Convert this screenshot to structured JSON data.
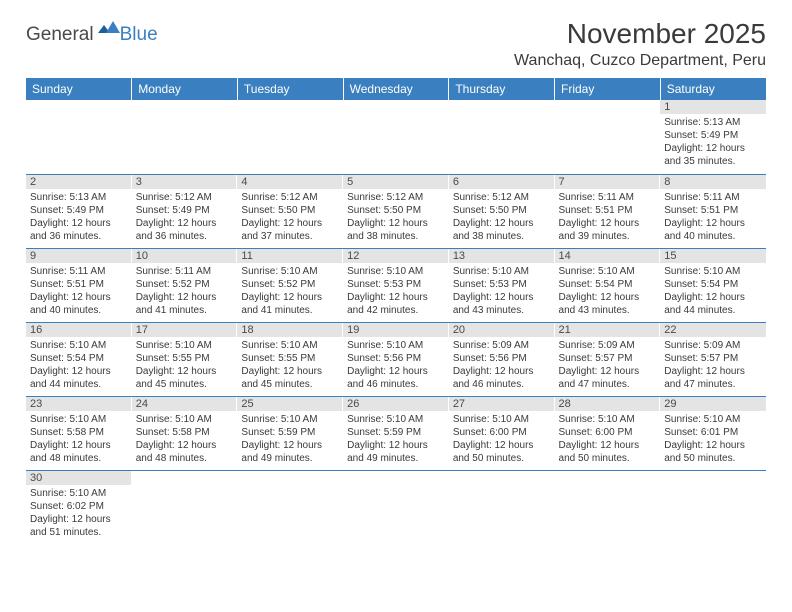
{
  "brand": {
    "part1": "General",
    "part2": "Blue"
  },
  "title": "November 2025",
  "location": "Wanchaq, Cuzco Department, Peru",
  "colors": {
    "header_bg": "#3a7fbf",
    "header_text": "#ffffff",
    "daynum_bg": "#e4e4e4",
    "cell_border": "#3a7fbf",
    "text": "#3a3a3a"
  },
  "weekdays": [
    "Sunday",
    "Monday",
    "Tuesday",
    "Wednesday",
    "Thursday",
    "Friday",
    "Saturday"
  ],
  "weeks": [
    [
      {
        "blank": true
      },
      {
        "blank": true
      },
      {
        "blank": true
      },
      {
        "blank": true
      },
      {
        "blank": true
      },
      {
        "blank": true
      },
      {
        "n": "1",
        "sunrise": "Sunrise: 5:13 AM",
        "sunset": "Sunset: 5:49 PM",
        "daylight": "Daylight: 12 hours and 35 minutes."
      }
    ],
    [
      {
        "n": "2",
        "sunrise": "Sunrise: 5:13 AM",
        "sunset": "Sunset: 5:49 PM",
        "daylight": "Daylight: 12 hours and 36 minutes."
      },
      {
        "n": "3",
        "sunrise": "Sunrise: 5:12 AM",
        "sunset": "Sunset: 5:49 PM",
        "daylight": "Daylight: 12 hours and 36 minutes."
      },
      {
        "n": "4",
        "sunrise": "Sunrise: 5:12 AM",
        "sunset": "Sunset: 5:50 PM",
        "daylight": "Daylight: 12 hours and 37 minutes."
      },
      {
        "n": "5",
        "sunrise": "Sunrise: 5:12 AM",
        "sunset": "Sunset: 5:50 PM",
        "daylight": "Daylight: 12 hours and 38 minutes."
      },
      {
        "n": "6",
        "sunrise": "Sunrise: 5:12 AM",
        "sunset": "Sunset: 5:50 PM",
        "daylight": "Daylight: 12 hours and 38 minutes."
      },
      {
        "n": "7",
        "sunrise": "Sunrise: 5:11 AM",
        "sunset": "Sunset: 5:51 PM",
        "daylight": "Daylight: 12 hours and 39 minutes."
      },
      {
        "n": "8",
        "sunrise": "Sunrise: 5:11 AM",
        "sunset": "Sunset: 5:51 PM",
        "daylight": "Daylight: 12 hours and 40 minutes."
      }
    ],
    [
      {
        "n": "9",
        "sunrise": "Sunrise: 5:11 AM",
        "sunset": "Sunset: 5:51 PM",
        "daylight": "Daylight: 12 hours and 40 minutes."
      },
      {
        "n": "10",
        "sunrise": "Sunrise: 5:11 AM",
        "sunset": "Sunset: 5:52 PM",
        "daylight": "Daylight: 12 hours and 41 minutes."
      },
      {
        "n": "11",
        "sunrise": "Sunrise: 5:10 AM",
        "sunset": "Sunset: 5:52 PM",
        "daylight": "Daylight: 12 hours and 41 minutes."
      },
      {
        "n": "12",
        "sunrise": "Sunrise: 5:10 AM",
        "sunset": "Sunset: 5:53 PM",
        "daylight": "Daylight: 12 hours and 42 minutes."
      },
      {
        "n": "13",
        "sunrise": "Sunrise: 5:10 AM",
        "sunset": "Sunset: 5:53 PM",
        "daylight": "Daylight: 12 hours and 43 minutes."
      },
      {
        "n": "14",
        "sunrise": "Sunrise: 5:10 AM",
        "sunset": "Sunset: 5:54 PM",
        "daylight": "Daylight: 12 hours and 43 minutes."
      },
      {
        "n": "15",
        "sunrise": "Sunrise: 5:10 AM",
        "sunset": "Sunset: 5:54 PM",
        "daylight": "Daylight: 12 hours and 44 minutes."
      }
    ],
    [
      {
        "n": "16",
        "sunrise": "Sunrise: 5:10 AM",
        "sunset": "Sunset: 5:54 PM",
        "daylight": "Daylight: 12 hours and 44 minutes."
      },
      {
        "n": "17",
        "sunrise": "Sunrise: 5:10 AM",
        "sunset": "Sunset: 5:55 PM",
        "daylight": "Daylight: 12 hours and 45 minutes."
      },
      {
        "n": "18",
        "sunrise": "Sunrise: 5:10 AM",
        "sunset": "Sunset: 5:55 PM",
        "daylight": "Daylight: 12 hours and 45 minutes."
      },
      {
        "n": "19",
        "sunrise": "Sunrise: 5:10 AM",
        "sunset": "Sunset: 5:56 PM",
        "daylight": "Daylight: 12 hours and 46 minutes."
      },
      {
        "n": "20",
        "sunrise": "Sunrise: 5:09 AM",
        "sunset": "Sunset: 5:56 PM",
        "daylight": "Daylight: 12 hours and 46 minutes."
      },
      {
        "n": "21",
        "sunrise": "Sunrise: 5:09 AM",
        "sunset": "Sunset: 5:57 PM",
        "daylight": "Daylight: 12 hours and 47 minutes."
      },
      {
        "n": "22",
        "sunrise": "Sunrise: 5:09 AM",
        "sunset": "Sunset: 5:57 PM",
        "daylight": "Daylight: 12 hours and 47 minutes."
      }
    ],
    [
      {
        "n": "23",
        "sunrise": "Sunrise: 5:10 AM",
        "sunset": "Sunset: 5:58 PM",
        "daylight": "Daylight: 12 hours and 48 minutes."
      },
      {
        "n": "24",
        "sunrise": "Sunrise: 5:10 AM",
        "sunset": "Sunset: 5:58 PM",
        "daylight": "Daylight: 12 hours and 48 minutes."
      },
      {
        "n": "25",
        "sunrise": "Sunrise: 5:10 AM",
        "sunset": "Sunset: 5:59 PM",
        "daylight": "Daylight: 12 hours and 49 minutes."
      },
      {
        "n": "26",
        "sunrise": "Sunrise: 5:10 AM",
        "sunset": "Sunset: 5:59 PM",
        "daylight": "Daylight: 12 hours and 49 minutes."
      },
      {
        "n": "27",
        "sunrise": "Sunrise: 5:10 AM",
        "sunset": "Sunset: 6:00 PM",
        "daylight": "Daylight: 12 hours and 50 minutes."
      },
      {
        "n": "28",
        "sunrise": "Sunrise: 5:10 AM",
        "sunset": "Sunset: 6:00 PM",
        "daylight": "Daylight: 12 hours and 50 minutes."
      },
      {
        "n": "29",
        "sunrise": "Sunrise: 5:10 AM",
        "sunset": "Sunset: 6:01 PM",
        "daylight": "Daylight: 12 hours and 50 minutes."
      }
    ],
    [
      {
        "n": "30",
        "sunrise": "Sunrise: 5:10 AM",
        "sunset": "Sunset: 6:02 PM",
        "daylight": "Daylight: 12 hours and 51 minutes."
      },
      {
        "blank": true
      },
      {
        "blank": true
      },
      {
        "blank": true
      },
      {
        "blank": true
      },
      {
        "blank": true
      },
      {
        "blank": true
      }
    ]
  ]
}
